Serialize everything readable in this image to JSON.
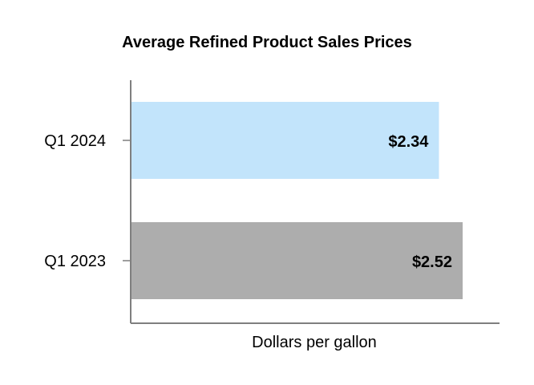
{
  "chart_data": {
    "type": "bar",
    "orientation": "horizontal",
    "title": "Average Refined Product Sales Prices",
    "xlabel": "Dollars per gallon",
    "ylabel": "",
    "categories": [
      "Q1 2024",
      "Q1 2023"
    ],
    "values": [
      2.34,
      2.52
    ],
    "value_labels": [
      "$2.34",
      "$2.52"
    ],
    "bar_colors": [
      "#C2E4FB",
      "#ADADAD"
    ],
    "xlim": [
      0,
      2.8
    ],
    "grid": false,
    "legend": "none"
  }
}
